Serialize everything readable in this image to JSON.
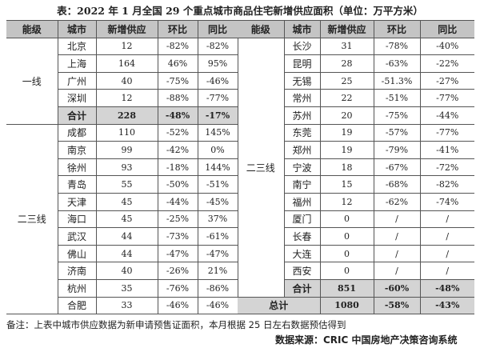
{
  "title": "表：2022 年 1 月全国 29 个重点城市商品住宅新增供应面积（单位：万平方米）",
  "headers": [
    "能级",
    "城市",
    "新增供应",
    "环比",
    "同比"
  ],
  "left": {
    "tier1": "一线",
    "tier1_rows": [
      [
        "北京",
        "12",
        "-82%",
        "-82%"
      ],
      [
        "上海",
        "164",
        "46%",
        "95%"
      ],
      [
        "广州",
        "40",
        "-75%",
        "-46%"
      ],
      [
        "深圳",
        "12",
        "-88%",
        "-77%"
      ]
    ],
    "tier1_sum": [
      "合计",
      "228",
      "-48%",
      "-17%"
    ],
    "tier23": "二三线",
    "tier23_rows": [
      [
        "成都",
        "110",
        "-52%",
        "145%"
      ],
      [
        "南京",
        "99",
        "-42%",
        "0%"
      ],
      [
        "徐州",
        "93",
        "-18%",
        "144%"
      ],
      [
        "青岛",
        "55",
        "-50%",
        "-51%"
      ],
      [
        "天津",
        "45",
        "-44%",
        "-45%"
      ],
      [
        "海口",
        "45",
        "-25%",
        "37%"
      ],
      [
        "武汉",
        "44",
        "-73%",
        "-61%"
      ],
      [
        "佛山",
        "44",
        "-47%",
        "-47%"
      ],
      [
        "济南",
        "40",
        "-26%",
        "21%"
      ],
      [
        "杭州",
        "35",
        "-76%",
        "-86%"
      ],
      [
        "合肥",
        "33",
        "-46%",
        "-46%"
      ]
    ]
  },
  "right": {
    "tier23": "二三线",
    "rows": [
      [
        "长沙",
        "31",
        "-78%",
        "-40%"
      ],
      [
        "昆明",
        "28",
        "-63%",
        "-22%"
      ],
      [
        "无锡",
        "25",
        "-51.3%",
        "-27%"
      ],
      [
        "常州",
        "22",
        "-51%",
        "-77%"
      ],
      [
        "苏州",
        "20",
        "-75%",
        "-44%"
      ],
      [
        "东莞",
        "19",
        "-57%",
        "-77%"
      ],
      [
        "郑州",
        "19",
        "-79%",
        "-41%"
      ],
      [
        "宁波",
        "18",
        "-67%",
        "-72%"
      ],
      [
        "南宁",
        "15",
        "-68%",
        "-82%"
      ],
      [
        "福州",
        "12",
        "-62%",
        "-74%"
      ],
      [
        "厦门",
        "0",
        "/",
        "/"
      ],
      [
        "长春",
        "0",
        "/",
        "/"
      ],
      [
        "大连",
        "0",
        "/",
        "/"
      ],
      [
        "西安",
        "0",
        "/",
        "/"
      ]
    ],
    "sum": [
      "合计",
      "851",
      "-60%",
      "-48%"
    ],
    "total": [
      "总计",
      "1080",
      "-58%",
      "-43%"
    ]
  },
  "note": "备注：上表中城市供应数据为新申请预售证面积，本月根据 25 日左右数据预估得到",
  "source": "数据来源：CRIC 中国房地产决策咨询系统"
}
